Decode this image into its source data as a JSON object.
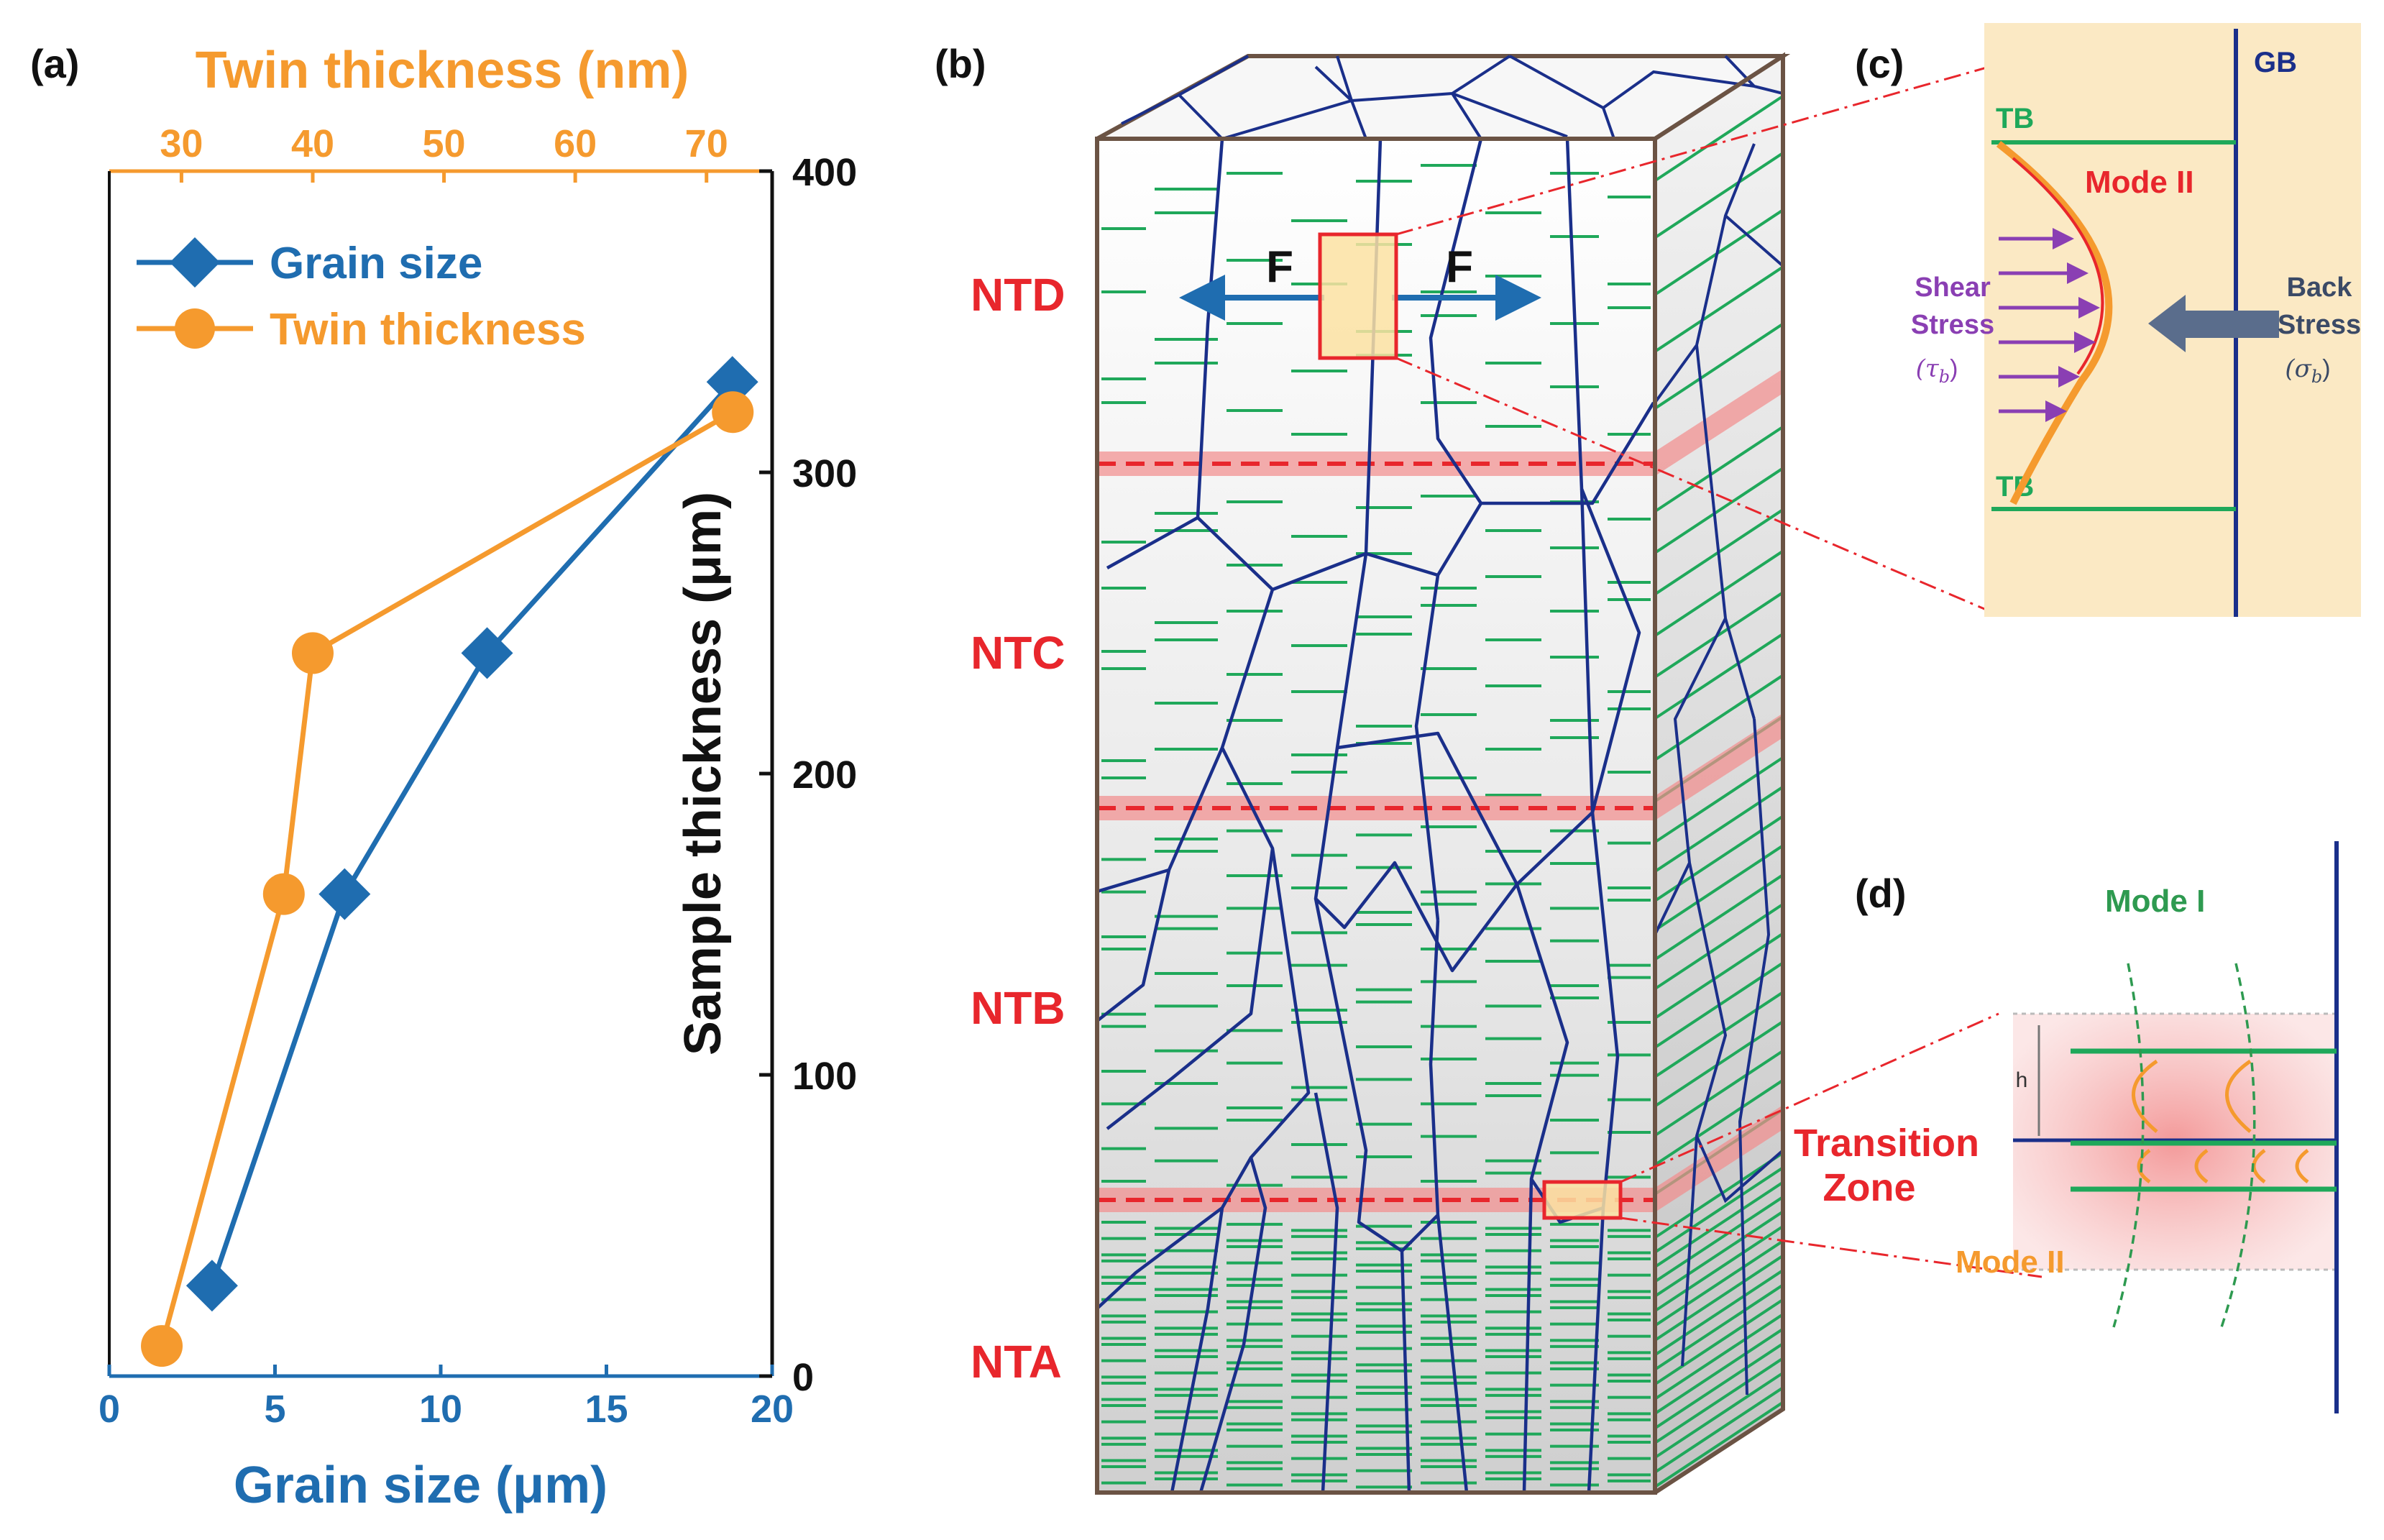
{
  "panels": {
    "a": "(a)",
    "b": "(b)",
    "c": "(c)",
    "d": "(d)"
  },
  "colors": {
    "grain": "#1f6db0",
    "twin": "#f59a2e",
    "navy": "#1a2f8a",
    "green": "#1fa85a",
    "red": "#e8262c",
    "purple": "#8a3fb3",
    "cream": "#fbe9c4"
  },
  "chart_data": {
    "type": "scatter",
    "title": "",
    "xlabel": "Grain size (μm)",
    "x2label": "Twin thickness (nm)",
    "ylabel": "Sample thickness (μm)",
    "xlim": [
      0,
      20
    ],
    "x2lim": [
      24.5,
      75
    ],
    "ylim": [
      0,
      400
    ],
    "xticks": [
      "0",
      "5",
      "10",
      "15",
      "20"
    ],
    "x2ticks": [
      "30",
      "40",
      "50",
      "60",
      "70"
    ],
    "yticks": [
      "0",
      "100",
      "200",
      "300",
      "400"
    ],
    "legend_position": "top-left",
    "series": [
      {
        "name": "Grain size",
        "axis": "bottom",
        "marker": "diamond",
        "x": [
          3.1,
          7.1,
          11.4,
          18.8
        ],
        "y": [
          30,
          160,
          240,
          330
        ]
      },
      {
        "name": "Twin thickness",
        "axis": "top",
        "marker": "circle",
        "x": [
          28.5,
          37.8,
          40.0,
          72.0
        ],
        "y": [
          10,
          160,
          240,
          320
        ]
      }
    ]
  },
  "schematic": {
    "zones": [
      "NTD",
      "NTC",
      "NTB",
      "NTA"
    ],
    "force": "F",
    "transition": [
      "Transition",
      "Zone"
    ],
    "c": {
      "gb": "GB",
      "tb_top": "TB",
      "tb_bottom": "TB",
      "mode": "Mode II",
      "shear": [
        "Shear",
        "Stress"
      ],
      "shear_sym": "(τ",
      "shear_sub": "b",
      "back": [
        "Back",
        "Stress"
      ],
      "back_sym": "(σ",
      "back_sub": "b",
      "close": ")"
    },
    "d": {
      "mode1": "Mode  I",
      "mode2": "Mode  II",
      "h": "h"
    }
  }
}
